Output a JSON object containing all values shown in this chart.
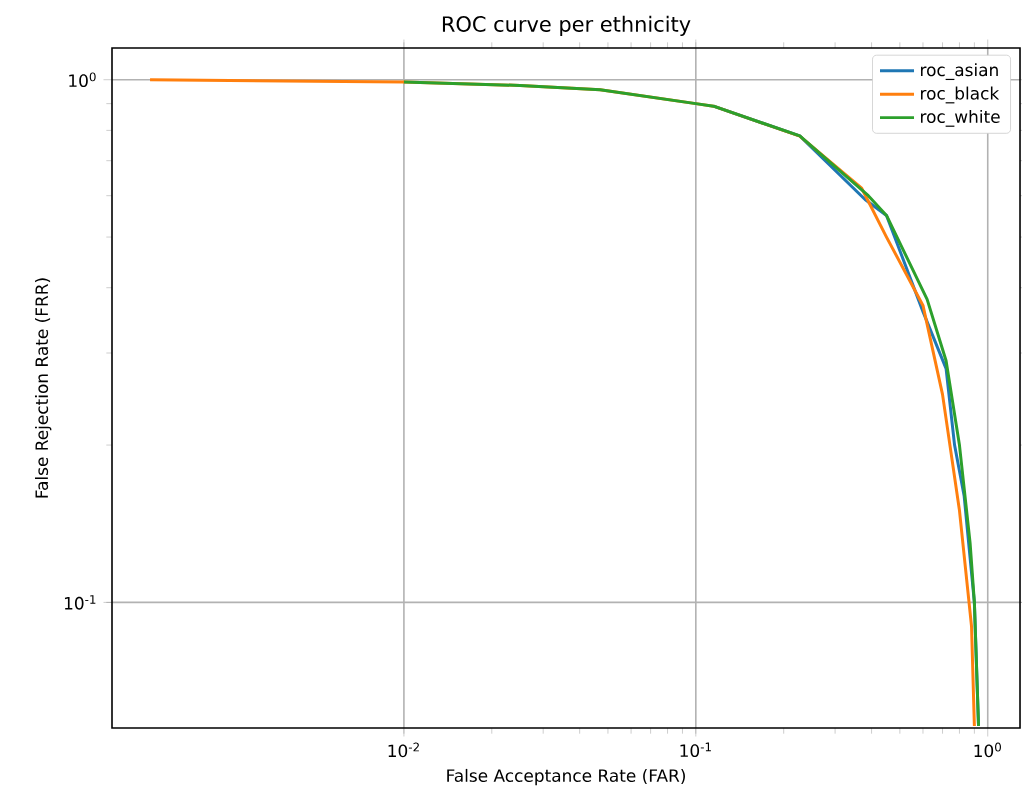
{
  "chart_data": {
    "type": "line",
    "title": "ROC curve per ethnicity",
    "xlabel": "False Acceptance Rate (FAR)",
    "ylabel": "False Rejection Rate (FRR)",
    "log": "xy",
    "grid": true,
    "legend": "top right",
    "marker": "none",
    "line_style": "solid",
    "xlim": [
      0.001,
      1.29
    ],
    "ylim": [
      0.0575,
      1.15
    ],
    "xticks": [
      {
        "value": 0.01,
        "label": "10$^{-2}$"
      },
      {
        "value": 0.1,
        "label": "10$^{-1}$"
      },
      {
        "value": 1,
        "label": "10$^{0}$"
      }
    ],
    "yticks": [
      {
        "value": 0.1,
        "label": "10$^{-1}$"
      },
      {
        "value": 1,
        "label": "10$^{0}$"
      }
    ],
    "series": [
      {
        "name": "roc_asian",
        "color": "#1f77b4",
        "x": [
          0.115,
          0.227,
          0.38,
          0.45,
          0.6,
          0.72,
          0.77,
          0.83,
          0.9,
          0.93
        ],
        "values": [
          0.89,
          0.781,
          0.59,
          0.55,
          0.36,
          0.28,
          0.2,
          0.16,
          0.1,
          0.058
        ]
      },
      {
        "name": "roc_black",
        "color": "#ff7f0e",
        "x": [
          0.00135,
          0.01,
          0.025,
          0.047,
          0.1,
          0.115,
          0.227,
          0.37,
          0.45,
          0.6,
          0.7,
          0.8,
          0.88,
          0.9
        ],
        "values": [
          1.0,
          0.99,
          0.975,
          0.957,
          0.9,
          0.89,
          0.78,
          0.62,
          0.5,
          0.37,
          0.25,
          0.15,
          0.09,
          0.058
        ]
      },
      {
        "name": "roc_white",
        "color": "#2ca02c",
        "x": [
          0.01,
          0.025,
          0.047,
          0.1,
          0.115,
          0.227,
          0.39,
          0.45,
          0.62,
          0.72,
          0.8,
          0.87,
          0.9,
          0.93
        ],
        "values": [
          0.99,
          0.975,
          0.957,
          0.9,
          0.89,
          0.781,
          0.6,
          0.55,
          0.38,
          0.29,
          0.2,
          0.13,
          0.1,
          0.058
        ]
      }
    ]
  }
}
